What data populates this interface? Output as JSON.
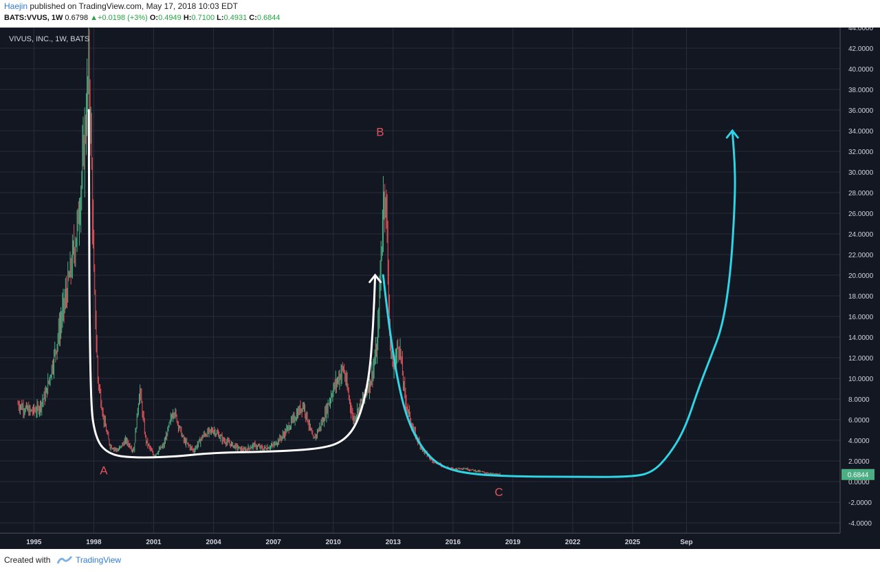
{
  "header": {
    "author": "Haejin",
    "published_text": " published on TradingView.com, May 17, 2018 10:03 EDT",
    "symbol": "BATS:VVUS, 1W",
    "last": "0.6798",
    "change": "+0.0198 (+3%)",
    "open_label": "O:",
    "open": "0.4949",
    "high_label": "H:",
    "high": "0.7100",
    "low_label": "L:",
    "low": "0.4931",
    "close_label": "C:",
    "close": "0.6844"
  },
  "footer": {
    "created_with": "Created with",
    "brand": "TradingView"
  },
  "colors": {
    "background": "#131722",
    "grid": "#2a2e39",
    "axis_text": "#d1d4dc",
    "candle_up": "#4caf83",
    "candle_down": "#e0535c",
    "white_path": "#ffffff",
    "cyan_path": "#2fd5e4",
    "label_red": "#e0535c",
    "price_badge": "#4caf83"
  },
  "chart_data": {
    "type": "line",
    "title": "VIVUS, INC., 1W, BATS",
    "xlabel": "",
    "ylabel": "",
    "x_ticks": [
      "1995",
      "1998",
      "2001",
      "2004",
      "2007",
      "2010",
      "2013",
      "2016",
      "2019",
      "2022",
      "2025",
      "Sep"
    ],
    "x_tick_years": [
      1995,
      1998,
      2001,
      2004,
      2007,
      2010,
      2013,
      2016,
      2019,
      2022,
      2025,
      2027.7
    ],
    "xlim": [
      1993.3,
      2035.4
    ],
    "y_ticks": [
      "44.0000",
      "42.0000",
      "40.0000",
      "38.0000",
      "36.0000",
      "34.0000",
      "32.0000",
      "30.0000",
      "28.0000",
      "26.0000",
      "24.0000",
      "22.0000",
      "20.0000",
      "18.0000",
      "16.0000",
      "14.0000",
      "12.0000",
      "10.0000",
      "8.0000",
      "6.0000",
      "4.0000",
      "2.0000",
      "0.0000",
      "-2.0000",
      "-4.0000"
    ],
    "ylim": [
      -5,
      44
    ],
    "grid": true,
    "last_price_label": "0.6844",
    "last_price": 0.6844,
    "price_series": {
      "name": "VVUS",
      "x": [
        1994.2,
        1994.8,
        1995.2,
        1995.6,
        1996.0,
        1996.4,
        1996.8,
        1997.2,
        1997.5,
        1997.75,
        1997.85,
        1998.0,
        1998.2,
        1998.5,
        1998.8,
        1999.2,
        1999.6,
        2000.0,
        2000.3,
        2000.6,
        2001.0,
        2001.5,
        2002.0,
        2002.5,
        2003.0,
        2003.5,
        2004.0,
        2004.5,
        2005.0,
        2005.5,
        2006.0,
        2006.5,
        2007.0,
        2007.5,
        2008.0,
        2008.5,
        2009.0,
        2009.5,
        2010.0,
        2010.5,
        2011.0,
        2011.5,
        2011.9,
        2012.2,
        2012.4,
        2012.55,
        2012.7,
        2012.85,
        2013.0,
        2013.3,
        2013.6,
        2014.0,
        2014.5,
        2015.0,
        2015.5,
        2016.0,
        2016.5,
        2017.0,
        2017.5,
        2018.0,
        2018.37
      ],
      "y": [
        7.5,
        6.8,
        7.0,
        8.5,
        12.0,
        16.0,
        20.0,
        25.0,
        32.0,
        40.0,
        34.0,
        20.0,
        10.0,
        6.0,
        3.5,
        3.0,
        4.0,
        3.0,
        9.0,
        4.0,
        2.5,
        3.5,
        7.0,
        4.0,
        3.0,
        4.5,
        5.0,
        4.0,
        3.5,
        3.0,
        3.5,
        3.2,
        3.5,
        4.5,
        6.0,
        7.5,
        4.0,
        6.0,
        9.0,
        11.0,
        6.0,
        8.0,
        10.0,
        13.0,
        22.0,
        29.0,
        24.0,
        13.0,
        11.0,
        13.5,
        8.0,
        5.0,
        3.0,
        2.0,
        1.5,
        1.2,
        1.3,
        1.1,
        0.9,
        0.7,
        0.68
      ]
    },
    "overlays": [
      {
        "name": "white-cup-path",
        "x": [
          1997.75,
          1997.8,
          1998.1,
          1998.8,
          2000.0,
          2002.0,
          2004.0,
          2007.0,
          2009.5,
          2010.6,
          2011.3,
          2011.8,
          2012.0,
          2012.1
        ],
        "y": [
          36.0,
          8.0,
          4.0,
          2.6,
          2.3,
          2.4,
          2.8,
          2.9,
          3.2,
          4.0,
          6.0,
          10.0,
          15.0,
          20.0
        ]
      },
      {
        "name": "cyan-projection-path",
        "x": [
          2012.5,
          2012.8,
          2013.2,
          2013.7,
          2014.5,
          2015.5,
          2017.0,
          2019.0,
          2022.0,
          2025.0,
          2026.0,
          2026.8,
          2027.6,
          2028.3,
          2028.9,
          2029.5,
          2029.9,
          2030.1,
          2030.15,
          2030.0
        ],
        "y": [
          20.0,
          15.0,
          10.0,
          6.0,
          3.0,
          1.3,
          0.7,
          0.5,
          0.45,
          0.45,
          0.9,
          2.5,
          5.0,
          9.0,
          12.0,
          15.0,
          20.0,
          26.0,
          30.0,
          34.0
        ]
      }
    ],
    "annotations": [
      {
        "text": "A",
        "x": 1998.5,
        "y": 0.7
      },
      {
        "text": "B",
        "x": 2012.35,
        "y": 33.5
      },
      {
        "text": "C",
        "x": 2018.3,
        "y": -1.4
      }
    ]
  }
}
